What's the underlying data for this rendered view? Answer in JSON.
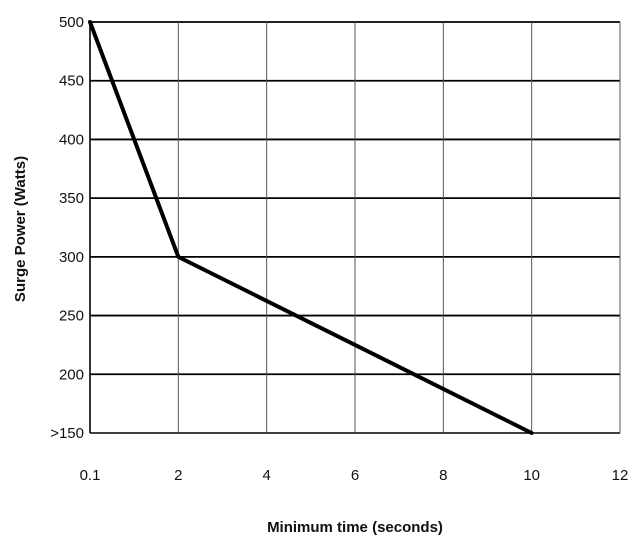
{
  "chart_data": {
    "type": "line",
    "title": "",
    "xlabel": "Minimum time (seconds)",
    "ylabel": "Surge Power (Watts)",
    "x_tick_labels": [
      "0.1",
      "2",
      "4",
      "6",
      "8",
      "10",
      "12"
    ],
    "x_ticks": [
      0.1,
      2,
      4,
      6,
      8,
      10,
      12
    ],
    "y_tick_labels": [
      ">150",
      "200",
      "250",
      "300",
      "350",
      "400",
      "450",
      "500"
    ],
    "y_ticks": [
      150,
      200,
      250,
      300,
      350,
      400,
      450,
      500
    ],
    "xlim": [
      0.1,
      12
    ],
    "ylim": [
      150,
      500
    ],
    "grid": true,
    "series": [
      {
        "color": "#000000",
        "points": [
          {
            "x": 0.1,
            "y": 500
          },
          {
            "x": 2,
            "y": 300
          },
          {
            "x": 10,
            "y": 150
          }
        ]
      }
    ]
  }
}
